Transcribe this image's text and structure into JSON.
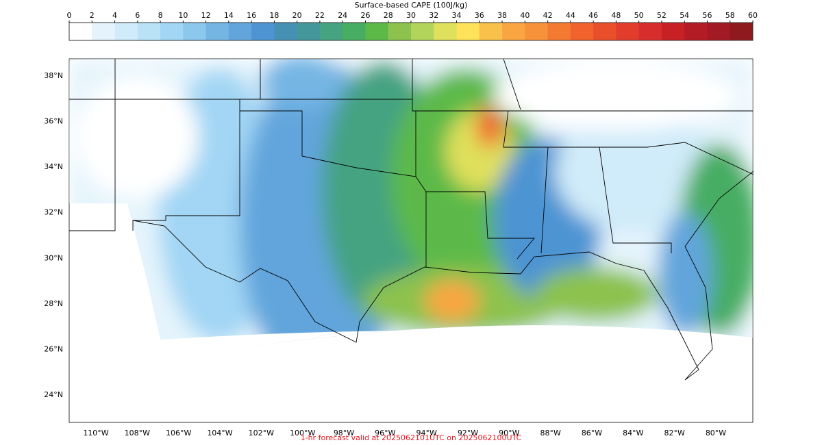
{
  "colorbar": {
    "title": "Surface-based CAPE (100J/kg)",
    "ticks": [
      0,
      2,
      4,
      6,
      8,
      10,
      12,
      14,
      16,
      18,
      20,
      22,
      24,
      26,
      28,
      30,
      32,
      34,
      36,
      38,
      40,
      42,
      44,
      46,
      48,
      50,
      52,
      54,
      56,
      58,
      60
    ],
    "colors": [
      "#ffffff",
      "#e5f4fc",
      "#d0ebf9",
      "#b9e2f7",
      "#a2d6f4",
      "#8cc7ec",
      "#74b5e4",
      "#62a5dc",
      "#4e94d3",
      "#4691b3",
      "#44989b",
      "#45a382",
      "#46ad63",
      "#5cb948",
      "#8cc24d",
      "#b2d45a",
      "#dfe05c",
      "#fde25a",
      "#f9c04a",
      "#f9a642",
      "#f7913a",
      "#f47a32",
      "#f1622c",
      "#e94f2a",
      "#e13c2c",
      "#d72d2c",
      "#c72025",
      "#b31b25",
      "#a11a24",
      "#8f1a1d"
    ]
  },
  "map": {
    "lat_ticks": [
      {
        "value": 38,
        "label": "38°N"
      },
      {
        "value": 36,
        "label": "36°N"
      },
      {
        "value": 34,
        "label": "34°N"
      },
      {
        "value": 32,
        "label": "32°N"
      },
      {
        "value": 30,
        "label": "30°N"
      },
      {
        "value": 28,
        "label": "28°N"
      },
      {
        "value": 26,
        "label": "26°N"
      },
      {
        "value": 24,
        "label": "24°N"
      }
    ],
    "lon_ticks": [
      {
        "value": -110,
        "label": "110°W"
      },
      {
        "value": -108,
        "label": "108°W"
      },
      {
        "value": -106,
        "label": "106°W"
      },
      {
        "value": -104,
        "label": "104°W"
      },
      {
        "value": -102,
        "label": "102°W"
      },
      {
        "value": -100,
        "label": "100°W"
      },
      {
        "value": -98,
        "label": "98°W"
      },
      {
        "value": -96,
        "label": "96°W"
      },
      {
        "value": -94,
        "label": "94°W"
      },
      {
        "value": -92,
        "label": "92°W"
      },
      {
        "value": -90,
        "label": "90°W"
      },
      {
        "value": -88,
        "label": "88°W"
      },
      {
        "value": -86,
        "label": "86°W"
      },
      {
        "value": -84,
        "label": "84°W"
      },
      {
        "value": -82,
        "label": "82°W"
      },
      {
        "value": -80,
        "label": "80°W"
      }
    ]
  },
  "footer": "1-hr forecast valid at 2025062101UTC on 2025062100UTC"
}
